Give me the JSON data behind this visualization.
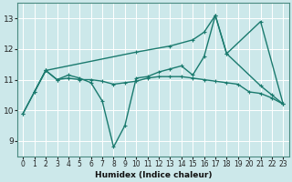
{
  "xlabel": "Humidex (Indice chaleur)",
  "bg_color": "#cce8ea",
  "grid_color": "#ffffff",
  "line_color": "#1a7a6e",
  "xlim": [
    -0.5,
    23.5
  ],
  "ylim": [
    8.5,
    13.5
  ],
  "xticks": [
    0,
    1,
    2,
    3,
    4,
    5,
    6,
    7,
    8,
    9,
    10,
    11,
    12,
    13,
    14,
    15,
    16,
    17,
    18,
    19,
    20,
    21,
    22,
    23
  ],
  "yticks": [
    9,
    10,
    11,
    12,
    13
  ],
  "line_diag_x": [
    0,
    2,
    10,
    13,
    15,
    16,
    17,
    18,
    21,
    23
  ],
  "line_diag_y": [
    9.9,
    11.3,
    11.9,
    12.1,
    12.3,
    12.55,
    13.1,
    11.85,
    12.9,
    10.2
  ],
  "line_dip_x": [
    1,
    2,
    3,
    4,
    5,
    6,
    7,
    8,
    9,
    10,
    11,
    12,
    13,
    14,
    15,
    16,
    17,
    18,
    21,
    22,
    23
  ],
  "line_dip_y": [
    10.6,
    11.3,
    11.0,
    11.15,
    11.05,
    10.9,
    10.3,
    8.8,
    9.5,
    11.05,
    11.1,
    11.25,
    11.35,
    11.45,
    11.15,
    11.75,
    13.1,
    11.85,
    10.8,
    10.5,
    10.2
  ],
  "line_flat_x": [
    0,
    1,
    2,
    3,
    4,
    5,
    6,
    7,
    8,
    9,
    10,
    11,
    12,
    13,
    14,
    15,
    16,
    17,
    18,
    19,
    20,
    21,
    22,
    23
  ],
  "line_flat_y": [
    9.9,
    10.6,
    11.3,
    11.0,
    11.05,
    11.0,
    11.0,
    10.95,
    10.85,
    10.9,
    10.95,
    11.05,
    11.1,
    11.1,
    11.1,
    11.05,
    11.0,
    10.95,
    10.9,
    10.85,
    10.6,
    10.55,
    10.4,
    10.2
  ]
}
